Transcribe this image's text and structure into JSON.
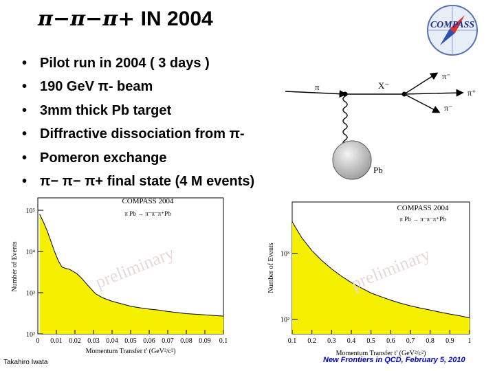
{
  "slide": {
    "title": {
      "particles": "π−π−π+",
      "suffix": "IN 2004"
    },
    "logo": {
      "text": "COMPASS"
    },
    "bullets": [
      "Pilot run in 2004 ( 3 days )",
      "190 GeV π- beam",
      "3mm thick Pb target",
      "Diffractive dissociation from π-",
      "Pomeron exchange",
      "π− π− π+ final state (4 M events)"
    ],
    "footer": {
      "author": "Takahiro Iwata",
      "event": "New Frontiers in QCD,  February 5, 2010"
    }
  },
  "diagram": {
    "beam_label": "π",
    "system_label": "X⁻",
    "out_labels": [
      "π⁻",
      "π⁺",
      "π⁻"
    ],
    "target_label": "Pb"
  },
  "chart_data": [
    {
      "type": "area",
      "title": "COMPASS 2004",
      "subtitle": "π Pb → π⁻π⁻π⁺Pb",
      "watermark": "preliminary",
      "xlabel": "Momentum Transfer t' (GeV²/c²)",
      "ylabel": "Number of Events",
      "xlim": [
        0,
        0.1
      ],
      "ylim": [
        100,
        200000
      ],
      "yscale": "log",
      "fill_color": "#f5f000",
      "xticks": [
        "0",
        "0.01",
        "0.02",
        "0.03",
        "0.04",
        "0.05",
        "0.06",
        "0.07",
        "0.08",
        "0.09",
        "0.1"
      ],
      "yticks": [
        "10²",
        "10³",
        "10⁴",
        "10⁵"
      ],
      "x": [
        0.001,
        0.003,
        0.005,
        0.007,
        0.009,
        0.011,
        0.013,
        0.015,
        0.017,
        0.019,
        0.021,
        0.023,
        0.025,
        0.027,
        0.029,
        0.031,
        0.035,
        0.04,
        0.045,
        0.05,
        0.055,
        0.06,
        0.065,
        0.07,
        0.075,
        0.08,
        0.085,
        0.09,
        0.095,
        0.1
      ],
      "values": [
        80000,
        52000,
        32000,
        18000,
        10000,
        6000,
        4200,
        3900,
        3700,
        3300,
        2900,
        2400,
        1900,
        1500,
        1200,
        950,
        750,
        620,
        540,
        470,
        430,
        400,
        380,
        350,
        330,
        310,
        300,
        290,
        280,
        270
      ]
    },
    {
      "type": "area",
      "title": "COMPASS 2004",
      "subtitle": "π Pb → π⁻π⁻π⁺Pb",
      "watermark": "preliminary",
      "xlabel": "Momentum Transfer t' (GeV²/c²)",
      "ylabel": "Number of Events",
      "xlim": [
        0.1,
        1.0
      ],
      "ylim": [
        60,
        6000
      ],
      "yscale": "log",
      "fill_color": "#f5f000",
      "xticks": [
        "0.1",
        "0.2",
        "0.3",
        "0.4",
        "0.5",
        "0.6",
        "0.7",
        "0.8",
        "0.9",
        "1"
      ],
      "yticks": [
        "10²",
        "10³"
      ],
      "x": [
        0.1,
        0.15,
        0.2,
        0.25,
        0.3,
        0.35,
        0.4,
        0.45,
        0.5,
        0.55,
        0.6,
        0.65,
        0.7,
        0.75,
        0.8,
        0.85,
        0.9,
        0.95,
        1.0
      ],
      "values": [
        3000,
        1700,
        1100,
        780,
        580,
        450,
        360,
        300,
        250,
        220,
        195,
        175,
        160,
        148,
        138,
        128,
        120,
        113,
        105
      ]
    }
  ]
}
